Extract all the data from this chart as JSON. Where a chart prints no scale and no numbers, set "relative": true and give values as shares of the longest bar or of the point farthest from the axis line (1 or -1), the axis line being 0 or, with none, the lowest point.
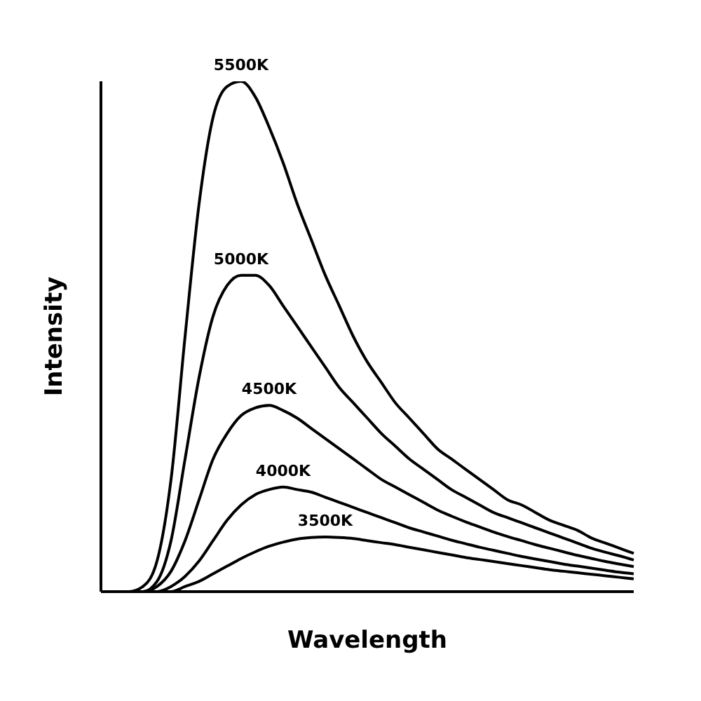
{
  "chart_data": {
    "type": "line",
    "xlabel": "Wavelength",
    "ylabel": "Intensity",
    "relative": true,
    "grid": false,
    "legend": false,
    "marker": "none",
    "line_style": "solid",
    "categories": [
      null,
      null,
      null,
      null,
      null,
      null,
      null,
      null,
      null,
      null,
      null,
      null,
      null,
      null,
      null,
      null,
      null,
      null,
      null,
      null,
      null,
      null,
      null,
      null,
      null,
      null,
      null,
      null,
      null,
      null,
      null,
      null,
      null,
      null,
      null,
      null,
      null,
      null,
      null
    ],
    "series": [
      {
        "name": "5500K",
        "color": "#000000",
        "values": [
          0,
          0,
          0,
          0.01,
          0.06,
          0.22,
          0.5,
          0.76,
          0.93,
          0.99,
          1.0,
          0.97,
          0.91,
          0.84,
          0.76,
          0.69,
          0.62,
          0.56,
          0.5,
          0.45,
          0.41,
          0.37,
          0.34,
          0.31,
          0.28,
          0.26,
          0.24,
          0.22,
          0.2,
          0.18,
          0.17,
          0.155,
          0.14,
          0.13,
          0.12,
          0.105,
          0.095,
          0.085,
          0.075
        ]
      },
      {
        "name": "5000K",
        "color": "#000000",
        "values": [
          0,
          0,
          0,
          0,
          0.02,
          0.1,
          0.26,
          0.42,
          0.54,
          0.6,
          0.62,
          0.62,
          0.6,
          0.56,
          0.52,
          0.48,
          0.44,
          0.4,
          0.37,
          0.34,
          0.31,
          0.285,
          0.26,
          0.24,
          0.22,
          0.2,
          0.185,
          0.17,
          0.155,
          0.145,
          0.135,
          0.125,
          0.115,
          0.105,
          0.095,
          0.085,
          0.077,
          0.07,
          0.062
        ]
      },
      {
        "name": "4500K",
        "color": "#000000",
        "values": [
          0,
          0,
          0,
          0,
          0.01,
          0.04,
          0.1,
          0.18,
          0.26,
          0.31,
          0.345,
          0.36,
          0.365,
          0.355,
          0.34,
          0.32,
          0.3,
          0.28,
          0.26,
          0.24,
          0.22,
          0.205,
          0.19,
          0.175,
          0.16,
          0.148,
          0.137,
          0.127,
          0.117,
          0.108,
          0.1,
          0.092,
          0.085,
          0.078,
          0.071,
          0.065,
          0.059,
          0.054,
          0.049
        ]
      },
      {
        "name": "4000K",
        "color": "#000000",
        "values": [
          0,
          0,
          0,
          0,
          0,
          0.01,
          0.03,
          0.06,
          0.1,
          0.14,
          0.17,
          0.19,
          0.2,
          0.205,
          0.2,
          0.195,
          0.185,
          0.175,
          0.165,
          0.155,
          0.145,
          0.135,
          0.125,
          0.117,
          0.109,
          0.101,
          0.094,
          0.087,
          0.081,
          0.075,
          0.069,
          0.064,
          0.059,
          0.054,
          0.05,
          0.046,
          0.042,
          0.038,
          0.035
        ]
      },
      {
        "name": "3500K",
        "color": "#000000",
        "values": [
          0,
          0,
          0,
          0,
          0,
          0,
          0.01,
          0.02,
          0.035,
          0.05,
          0.065,
          0.078,
          0.089,
          0.097,
          0.103,
          0.106,
          0.107,
          0.106,
          0.104,
          0.1,
          0.096,
          0.092,
          0.087,
          0.082,
          0.077,
          0.072,
          0.067,
          0.063,
          0.059,
          0.055,
          0.051,
          0.047,
          0.043,
          0.04,
          0.037,
          0.034,
          0.031,
          0.028,
          0.025
        ]
      }
    ]
  }
}
